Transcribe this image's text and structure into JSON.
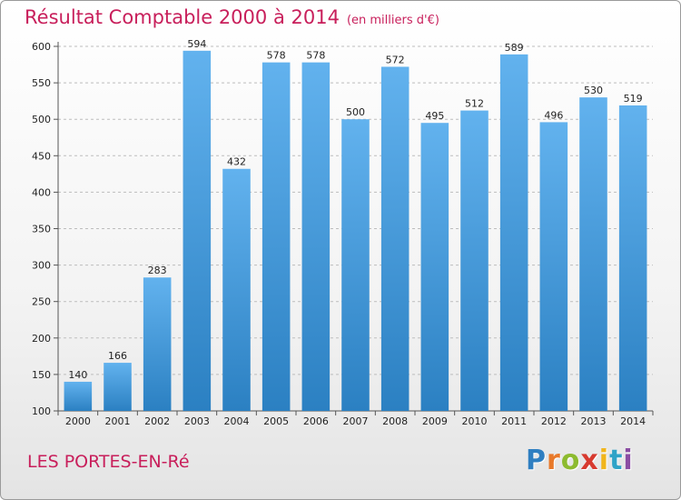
{
  "title": "Résultat Comptable 2000 à 2014",
  "subtitle": "(en milliers d'€)",
  "place": "LES PORTES-EN-Ré",
  "logo": {
    "letters": [
      "P",
      "r",
      "o",
      "x",
      "i",
      "t",
      "i"
    ],
    "colors": [
      "#2f7fc1",
      "#e8792a",
      "#8dbb2f",
      "#d73a2f",
      "#f1b51c",
      "#2fa3c7",
      "#8b4da3"
    ]
  },
  "colors": {
    "bar_light": "#62b2ee",
    "bar_dark": "#2b80c2",
    "title": "#c81f5b"
  },
  "chart_data": {
    "type": "bar",
    "title": "Résultat Comptable 2000 à 2014",
    "subtitle": "(en milliers d'€)",
    "xlabel": "",
    "ylabel": "",
    "ylim": [
      100,
      600
    ],
    "yticks": [
      100,
      150,
      200,
      250,
      300,
      350,
      400,
      450,
      500,
      550,
      600
    ],
    "grid": true,
    "categories": [
      "2000",
      "2001",
      "2002",
      "2003",
      "2004",
      "2005",
      "2006",
      "2007",
      "2008",
      "2009",
      "2010",
      "2011",
      "2012",
      "2013",
      "2014"
    ],
    "values": [
      140,
      166,
      283,
      594,
      432,
      578,
      578,
      500,
      572,
      495,
      512,
      589,
      496,
      530,
      519
    ]
  }
}
